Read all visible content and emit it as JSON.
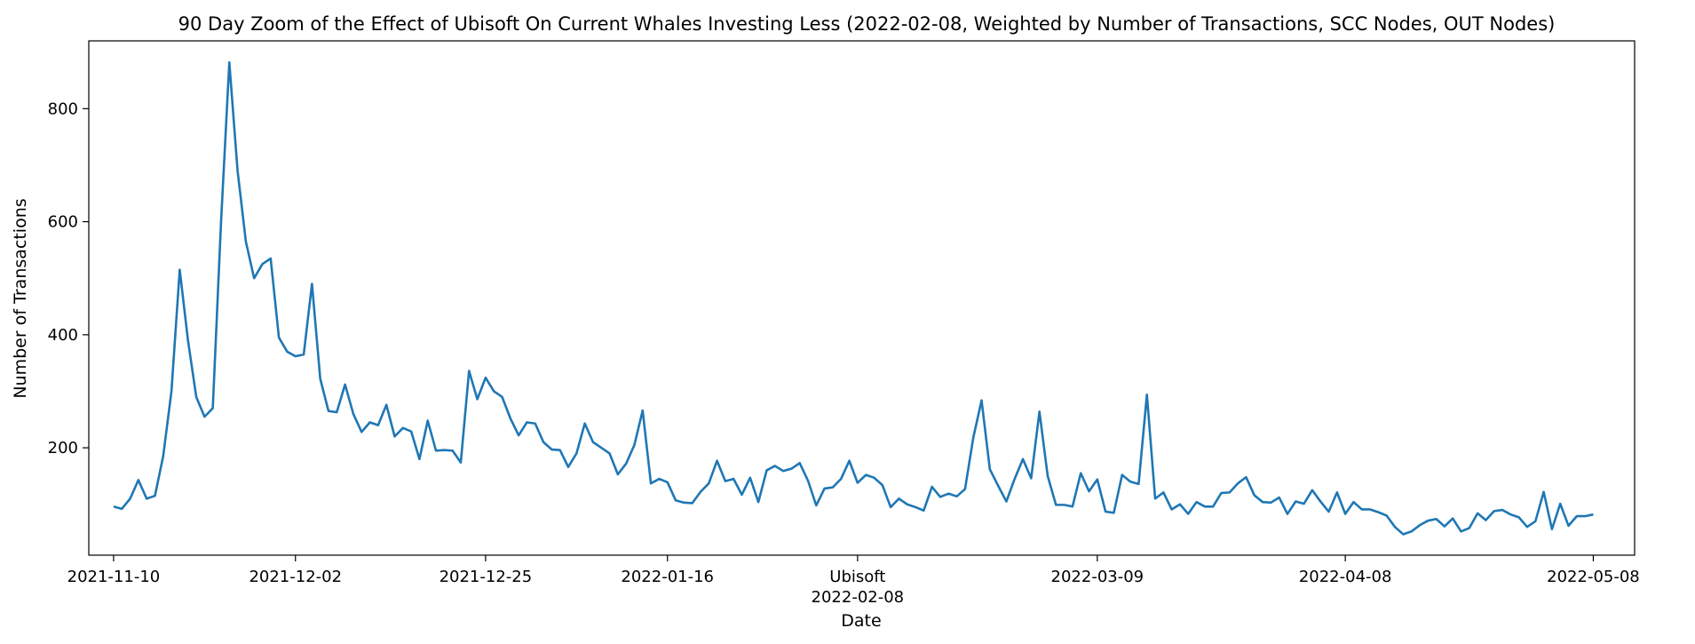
{
  "chart_data": {
    "type": "line",
    "title": "90 Day Zoom of the Effect of Ubisoft On Current Whales Investing Less (2022-02-08, Weighted by Number of Transactions, SCC Nodes, OUT Nodes)",
    "xlabel": "Date",
    "ylabel": "Number of Transactions",
    "x_range_days": [
      -3,
      184
    ],
    "ylim": [
      10,
      920
    ],
    "y_ticks": [
      200,
      400,
      600,
      800
    ],
    "x_ticks": [
      {
        "day": 0,
        "label": "2021-11-10"
      },
      {
        "day": 22,
        "label": "2021-12-02"
      },
      {
        "day": 45,
        "label": "2021-12-25"
      },
      {
        "day": 67,
        "label": "2022-01-16"
      },
      {
        "day": 90,
        "label": "Ubisoft",
        "label2": "2022-02-08"
      },
      {
        "day": 119,
        "label": "2022-03-09"
      },
      {
        "day": 149,
        "label": "2022-04-08"
      },
      {
        "day": 179,
        "label": "2022-05-08"
      }
    ],
    "line_color": "#1f77b4",
    "series": [
      {
        "name": "Number of Transactions",
        "start_date": "2021-11-10",
        "values": [
          96,
          92,
          110,
          143,
          110,
          115,
          185,
          300,
          515,
          390,
          290,
          255,
          270,
          600,
          882,
          690,
          565,
          500,
          525,
          535,
          395,
          370,
          362,
          365,
          490,
          322,
          265,
          263,
          312,
          260,
          228,
          245,
          240,
          276,
          220,
          235,
          229,
          180,
          248,
          195,
          196,
          195,
          174,
          336,
          286,
          324,
          300,
          290,
          252,
          222,
          245,
          243,
          210,
          197,
          196,
          166,
          190,
          243,
          210,
          200,
          190,
          153,
          172,
          205,
          266,
          137,
          145,
          139,
          107,
          103,
          102,
          122,
          137,
          177,
          141,
          145,
          117,
          147,
          104,
          160,
          168,
          159,
          163,
          173,
          142,
          98,
          128,
          130,
          145,
          177,
          138,
          152,
          147,
          134,
          95,
          110,
          100,
          95,
          89,
          131,
          113,
          119,
          114,
          127,
          218,
          284,
          162,
          133,
          105,
          145,
          180,
          146,
          264,
          150,
          99,
          99,
          96,
          155,
          123,
          144,
          87,
          85,
          152,
          140,
          136,
          294,
          110,
          121,
          91,
          100,
          83,
          104,
          96,
          96,
          120,
          121,
          137,
          148,
          116,
          104,
          103,
          112,
          83,
          105,
          101,
          125,
          105,
          87,
          121,
          83,
          104,
          91,
          91,
          86,
          80,
          60,
          47,
          52,
          63,
          71,
          74,
          61,
          75,
          52,
          58,
          84,
          72,
          88,
          90,
          82,
          77,
          60,
          70,
          122,
          56,
          101,
          62,
          79,
          79,
          82
        ]
      }
    ]
  }
}
